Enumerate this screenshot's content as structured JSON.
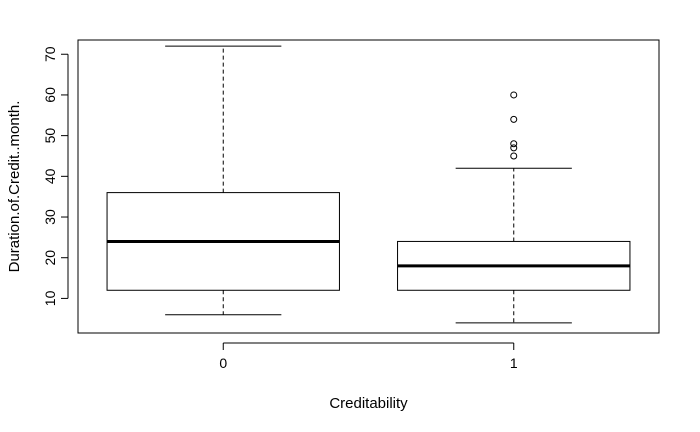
{
  "chart_data": {
    "type": "boxplot",
    "xlabel": "Creditability",
    "ylabel": "Duration.of.Credit..month.",
    "ylim": [
      1.5,
      73.5
    ],
    "yticks": [
      10,
      20,
      30,
      40,
      50,
      60,
      70
    ],
    "categories": [
      "0",
      "1"
    ],
    "boxes": [
      {
        "category": "0",
        "whisker_low": 6,
        "q1": 12,
        "median": 24,
        "q3": 36,
        "whisker_high": 72,
        "outliers": []
      },
      {
        "category": "1",
        "whisker_low": 4,
        "q1": 12,
        "median": 18,
        "q3": 24,
        "whisker_high": 42,
        "outliers": [
          45,
          47,
          48,
          54,
          60
        ]
      }
    ],
    "grid": false,
    "legend": "none"
  }
}
